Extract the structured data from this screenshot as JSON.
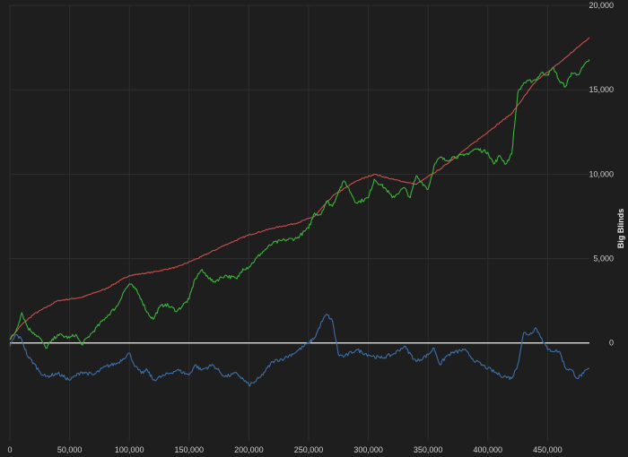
{
  "chart_data": {
    "type": "line",
    "title": "",
    "xlabel": "",
    "ylabel": "Big Blinds",
    "xlim": [
      0,
      485000
    ],
    "ylim": [
      -5800,
      20000
    ],
    "x_ticks": [
      0,
      50000,
      100000,
      150000,
      200000,
      250000,
      300000,
      350000,
      400000,
      450000
    ],
    "x_tick_labels": [
      "0",
      "50,000",
      "100,000",
      "150,000",
      "200,000",
      "250,000",
      "300,000",
      "350,000",
      "400,000",
      "450,000"
    ],
    "y_ticks": [
      0,
      5000,
      10000,
      15000,
      20000
    ],
    "y_tick_labels": [
      "0",
      "5,000",
      "10,000",
      "15,000",
      "20,000"
    ],
    "grid": true,
    "zero_line": true,
    "series": [
      {
        "color": "#c8504e",
        "x": [
          0,
          10000,
          20000,
          40000,
          60000,
          80000,
          100000,
          120000,
          140000,
          160000,
          180000,
          200000,
          220000,
          240000,
          255000,
          270000,
          290000,
          305000,
          320000,
          340000,
          360000,
          380000,
          400000,
          420000,
          440000,
          460000,
          475000,
          485000
        ],
        "values": [
          200,
          1100,
          1700,
          2500,
          2700,
          3200,
          4000,
          4200,
          4500,
          5100,
          5800,
          6400,
          6800,
          7100,
          7500,
          8700,
          9600,
          10000,
          9700,
          9400,
          10300,
          11400,
          12500,
          13600,
          15500,
          16600,
          17500,
          18100
        ]
      },
      {
        "color": "#3cb43c",
        "x": [
          0,
          5000,
          10000,
          15000,
          20000,
          25000,
          30000,
          40000,
          50000,
          55000,
          60000,
          70000,
          80000,
          90000,
          95000,
          100000,
          105000,
          110000,
          115000,
          120000,
          125000,
          130000,
          140000,
          150000,
          155000,
          160000,
          165000,
          170000,
          180000,
          190000,
          195000,
          200000,
          210000,
          220000,
          230000,
          240000,
          250000,
          255000,
          260000,
          265000,
          270000,
          275000,
          280000,
          290000,
          300000,
          305000,
          310000,
          315000,
          320000,
          330000,
          335000,
          340000,
          345000,
          350000,
          355000,
          360000,
          365000,
          370000,
          380000,
          390000,
          400000,
          405000,
          410000,
          415000,
          420000,
          425000,
          430000,
          440000,
          445000,
          450000,
          455000,
          460000,
          465000,
          470000,
          475000,
          485000
        ],
        "values": [
          200,
          700,
          1800,
          900,
          600,
          300,
          -300,
          500,
          300,
          500,
          -100,
          700,
          1500,
          2200,
          3000,
          3500,
          3200,
          2600,
          1800,
          1400,
          2100,
          2300,
          1900,
          2600,
          3800,
          4300,
          4000,
          3600,
          4000,
          3800,
          4400,
          4500,
          5300,
          5900,
          6100,
          6200,
          6800,
          7700,
          7600,
          8400,
          8100,
          9000,
          9600,
          8300,
          8600,
          9700,
          9400,
          9100,
          8600,
          9200,
          8600,
          9900,
          9500,
          9100,
          10500,
          11000,
          10800,
          11000,
          11100,
          11500,
          11300,
          10600,
          11100,
          10600,
          11200,
          14800,
          15400,
          15600,
          16000,
          15900,
          16300,
          15500,
          15200,
          16000,
          15900,
          16800
        ]
      },
      {
        "color": "#3d6fa8",
        "x": [
          0,
          5000,
          10000,
          15000,
          20000,
          25000,
          30000,
          40000,
          50000,
          60000,
          70000,
          80000,
          90000,
          100000,
          105000,
          110000,
          115000,
          120000,
          130000,
          140000,
          150000,
          155000,
          160000,
          170000,
          180000,
          190000,
          200000,
          205000,
          210000,
          220000,
          230000,
          240000,
          250000,
          255000,
          260000,
          265000,
          270000,
          275000,
          280000,
          290000,
          300000,
          310000,
          320000,
          330000,
          340000,
          350000,
          355000,
          360000,
          365000,
          370000,
          380000,
          390000,
          400000,
          410000,
          415000,
          420000,
          425000,
          430000,
          435000,
          440000,
          445000,
          450000,
          460000,
          465000,
          470000,
          475000,
          480000,
          485000
        ],
        "values": [
          -200,
          500,
          200,
          -800,
          -1200,
          -1700,
          -2000,
          -1800,
          -2200,
          -1700,
          -1900,
          -1400,
          -1200,
          -600,
          -1400,
          -1800,
          -1600,
          -2200,
          -1900,
          -1600,
          -1900,
          -1300,
          -1600,
          -1300,
          -2000,
          -1800,
          -2500,
          -2300,
          -2000,
          -1100,
          -900,
          -500,
          0,
          300,
          1100,
          1700,
          1300,
          -700,
          -800,
          -400,
          -700,
          -900,
          -700,
          -200,
          -1100,
          -700,
          -300,
          -1300,
          -800,
          -600,
          -400,
          -1100,
          -1500,
          -1900,
          -2000,
          -2100,
          -1300,
          600,
          500,
          900,
          300,
          -400,
          -500,
          -1500,
          -1600,
          -2100,
          -1800,
          -1500
        ]
      }
    ]
  }
}
